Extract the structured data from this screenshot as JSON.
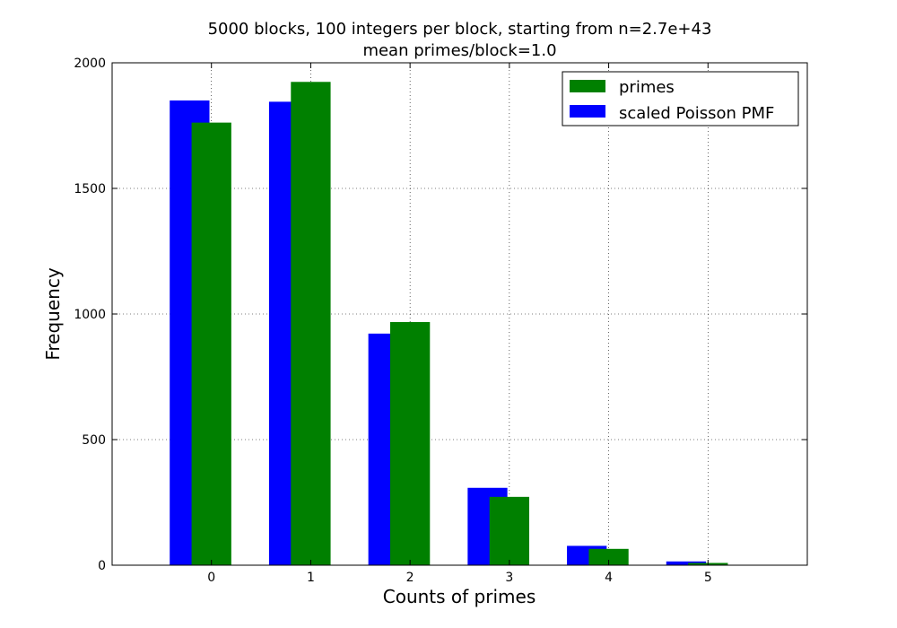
{
  "chart_data": {
    "type": "bar",
    "title": "5000 blocks, 100 integers per block, starting from n=2.7e+43",
    "subtitle": "mean primes/block=1.0",
    "xlabel": "Counts of primes",
    "ylabel": "Frequency",
    "categories": [
      0,
      1,
      2,
      3,
      4,
      5
    ],
    "xlim": [
      -1,
      6
    ],
    "ylim": [
      0,
      2000
    ],
    "yticks": [
      0,
      500,
      1000,
      1500,
      2000
    ],
    "grid": true,
    "legend_position": "top-right",
    "series": [
      {
        "name": "primes",
        "color": "#008000",
        "values": [
          1762,
          1924,
          968,
          272,
          65,
          9
        ]
      },
      {
        "name": "scaled Poisson PMF",
        "color": "#0000ff",
        "values": [
          1850,
          1845,
          922,
          308,
          77,
          15
        ]
      }
    ]
  }
}
